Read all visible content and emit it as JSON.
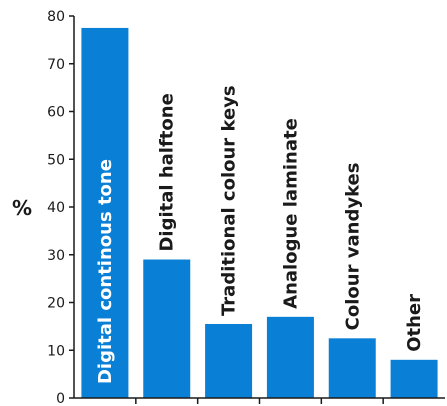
{
  "chart_data": {
    "type": "bar",
    "title": "",
    "xlabel": "",
    "ylabel": "%",
    "ylim": [
      0,
      80
    ],
    "yticks": [
      0,
      10,
      20,
      30,
      40,
      50,
      60,
      70,
      80
    ],
    "categories": [
      "Digital continous tone",
      "Digital halftone",
      "Traditional colour keys",
      "Analogue laminate",
      "Colour vandykes",
      "Other"
    ],
    "values": [
      77.5,
      29,
      15.5,
      17,
      12.5,
      8
    ],
    "grid": false,
    "legend": "none",
    "colors": {
      "bar": "#0a7fd6",
      "axis": "#1a1a1a",
      "label_inside": "#ffffff",
      "label_outside": "#1a1a1a"
    }
  }
}
